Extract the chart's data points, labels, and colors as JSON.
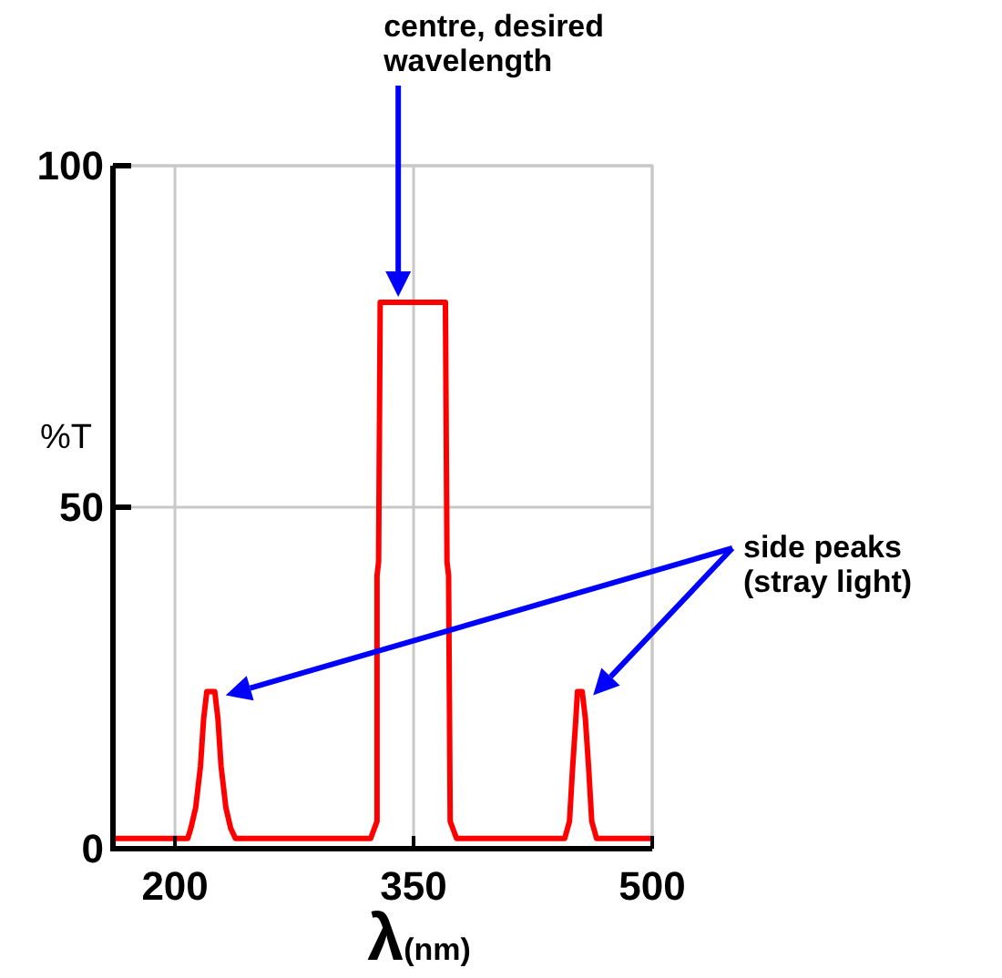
{
  "chart_data": {
    "type": "line",
    "xlabel": "λ(nm)",
    "ylabel": "%T",
    "x": [
      161,
      208,
      210,
      213,
      216,
      218,
      220,
      225,
      227,
      229,
      232,
      235,
      238,
      323,
      327,
      327,
      328,
      329,
      370,
      371,
      372,
      373,
      377,
      445,
      448,
      450,
      452,
      453,
      456,
      458,
      460,
      462,
      465,
      500
    ],
    "series": [
      {
        "color": "#ff0000",
        "values": [
          1.5,
          1.5,
          3,
          6,
          12,
          19,
          23,
          23,
          19,
          12,
          6,
          3,
          1.5,
          1.5,
          4,
          40,
          42,
          80,
          80,
          42,
          40,
          4,
          1.5,
          1.5,
          4,
          12,
          19,
          23,
          23,
          19,
          12,
          4,
          1.5,
          1.5
        ]
      }
    ],
    "xlim": [
      161,
      500
    ],
    "ylim": [
      0,
      100
    ],
    "xticks": [
      200,
      350,
      500
    ],
    "yticks": [
      0,
      50,
      100
    ],
    "grid": true,
    "marker": "none",
    "line_style": "solid",
    "annotations": [
      "centre, desired\nwavelength",
      "side peaks\n(stray light)"
    ]
  }
}
